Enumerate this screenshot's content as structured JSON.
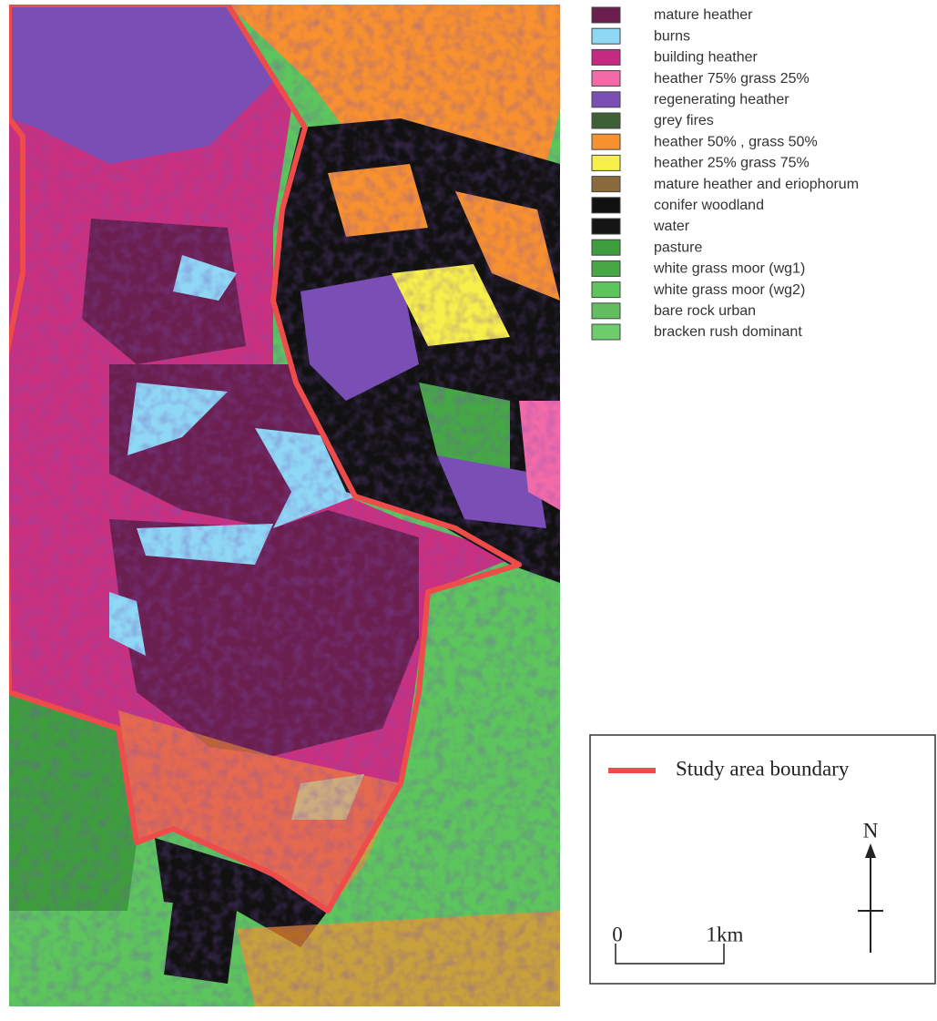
{
  "legend": {
    "items": [
      {
        "label": "mature heather",
        "color": "#6b1f4f"
      },
      {
        "label": "burns",
        "color": "#8fd8f5"
      },
      {
        "label": "building heather",
        "color": "#c42a7f"
      },
      {
        "label": "heather 75% grass 25%",
        "color": "#f26aa8"
      },
      {
        "label": "regenerating heather",
        "color": "#7a4fb5"
      },
      {
        "label": "grey fires",
        "color": "#3f5f35"
      },
      {
        "label": "heather 50% , grass 50%",
        "color": "#f7902f"
      },
      {
        "label": "heather 25% grass 75%",
        "color": "#f7ef4a"
      },
      {
        "label": "mature heather and eriophorum",
        "color": "#8a6a3c"
      },
      {
        "label": "conifer woodland",
        "color": "#111111"
      },
      {
        "label": "water",
        "color": "#151515"
      },
      {
        "label": "pasture",
        "color": "#3e9e3e"
      },
      {
        "label": "white grass moor (wg1)",
        "color": "#45a845"
      },
      {
        "label": "white grass moor (wg2)",
        "color": "#5cc65c"
      },
      {
        "label": "bare rock urban",
        "color": "#62be5e"
      },
      {
        "label": "bracken rush dominant",
        "color": "#6ccd6a"
      }
    ]
  },
  "key": {
    "boundary_label": "Study area boundary",
    "north_label": "N",
    "scale_start": "0",
    "scale_end": "1km"
  }
}
